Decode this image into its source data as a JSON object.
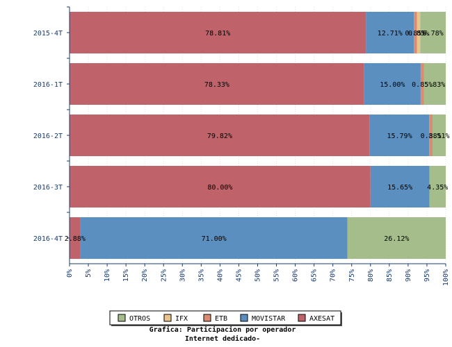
{
  "chart_data": {
    "type": "bar",
    "orientation": "horizontal",
    "stacked": true,
    "title": "Grafica: Participacion por operador",
    "subtitle": "Internet dedicado-",
    "xlabel": "",
    "ylabel": "",
    "xlim": [
      0,
      100
    ],
    "x_ticks": [
      "0%",
      "5%",
      "10%",
      "15%",
      "20%",
      "25%",
      "30%",
      "35%",
      "40%",
      "45%",
      "50%",
      "55%",
      "60%",
      "65%",
      "70%",
      "75%",
      "80%",
      "85%",
      "90%",
      "95%",
      "100%"
    ],
    "grid": true,
    "legend_position": "bottom",
    "categories": [
      "2015-4T",
      "2016-1T",
      "2016-2T",
      "2016-3T",
      "2016-4T"
    ],
    "series": [
      {
        "name": "AXESAT",
        "color": "#c0626a",
        "values": [
          78.81,
          78.33,
          79.82,
          80.0,
          2.88
        ]
      },
      {
        "name": "MOVISTAR",
        "color": "#5b8fc0",
        "values": [
          12.71,
          15.0,
          15.79,
          15.65,
          71.0
        ]
      },
      {
        "name": "ETB",
        "color": "#d98c72",
        "values": [
          0.85,
          0.85,
          0.88,
          0.0,
          0.0
        ]
      },
      {
        "name": "IFX",
        "color": "#e8c48c",
        "values": [
          0.85,
          0.0,
          0.0,
          0.0,
          0.0
        ]
      },
      {
        "name": "OTROS",
        "color": "#a4bd8a",
        "values": [
          6.78,
          5.83,
          3.51,
          4.35,
          26.12
        ]
      }
    ],
    "data_labels": [
      [
        "78.81%",
        "12.71%",
        "0.85%",
        "0.85%",
        "6.78%"
      ],
      [
        "78.33%",
        "15.00%",
        "0.85%",
        "",
        "5.83%"
      ],
      [
        "79.82%",
        "15.79%",
        "0.88%",
        "",
        "3.51%"
      ],
      [
        "80.00%",
        "15.65%",
        "",
        "",
        "4.35%"
      ],
      [
        "2.88%",
        "71.00%",
        "",
        "",
        "26.12%"
      ]
    ],
    "legend_order": [
      "OTROS",
      "IFX",
      "ETB",
      "MOVISTAR",
      "AXESAT"
    ]
  }
}
